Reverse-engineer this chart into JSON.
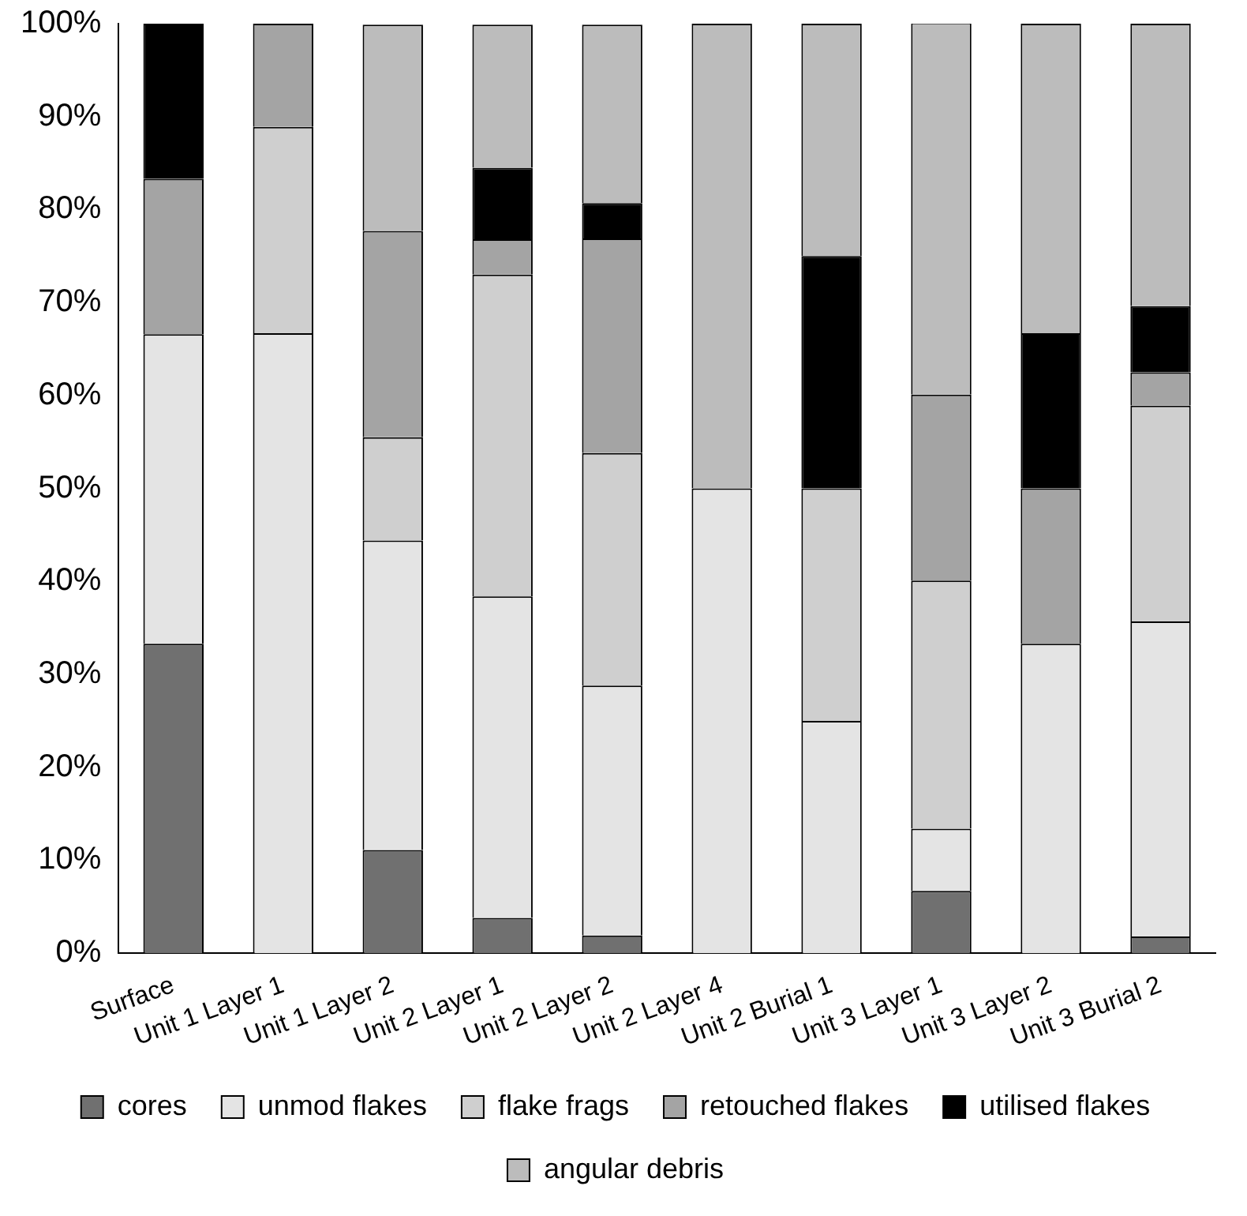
{
  "chart_data": {
    "type": "bar",
    "stacked": true,
    "grid": false,
    "legend": "bottom",
    "categories": [
      "Surface",
      "Unit 1 Layer 1",
      "Unit 1 Layer 2",
      "Unit 2 Layer 1",
      "Unit 2 Layer 2",
      "Unit 2 Layer 4",
      "Unit 2 Burial 1",
      "Unit 3 Layer 1",
      "Unit 3 Layer 2",
      "Unit 3 Burial 2"
    ],
    "ylim": [
      0,
      100
    ],
    "yticks": [
      {
        "value": 0,
        "label": "0%"
      },
      {
        "value": 10,
        "label": "10%"
      },
      {
        "value": 20,
        "label": "20%"
      },
      {
        "value": 30,
        "label": "30%"
      },
      {
        "value": 40,
        "label": "40%"
      },
      {
        "value": 50,
        "label": "50%"
      },
      {
        "value": 60,
        "label": "60%"
      },
      {
        "value": 70,
        "label": "70%"
      },
      {
        "value": 80,
        "label": "80%"
      },
      {
        "value": 90,
        "label": "90%"
      },
      {
        "value": 100,
        "label": "100%"
      }
    ],
    "series": [
      {
        "name": "cores",
        "color": "#707070",
        "values": [
          33.3,
          0,
          11.1,
          3.8,
          1.9,
          0,
          0,
          6.7,
          0,
          1.8
        ]
      },
      {
        "name": "unmod flakes",
        "color": "#e4e4e4",
        "values": [
          33.3,
          66.7,
          33.3,
          34.6,
          26.9,
          50,
          25,
          6.7,
          33.3,
          33.9
        ]
      },
      {
        "name": "flake frags",
        "color": "#cfcfcf",
        "values": [
          0,
          22.2,
          11.1,
          34.6,
          25.0,
          0,
          25,
          26.7,
          0,
          23.2
        ]
      },
      {
        "name": "retouched flakes",
        "color": "#a4a4a4",
        "values": [
          16.7,
          11.1,
          22.2,
          3.8,
          23.1,
          0,
          0,
          20,
          16.7,
          3.6
        ]
      },
      {
        "name": "utilised flakes",
        "color": "#000000",
        "values": [
          16.7,
          0,
          0,
          7.7,
          3.8,
          0,
          25,
          0,
          16.7,
          7.1
        ]
      },
      {
        "name": "angular debris",
        "color": "#bcbcbc",
        "values": [
          0,
          0,
          22.2,
          15.4,
          19.2,
          50,
          25,
          40,
          33.3,
          30.4
        ]
      }
    ]
  }
}
